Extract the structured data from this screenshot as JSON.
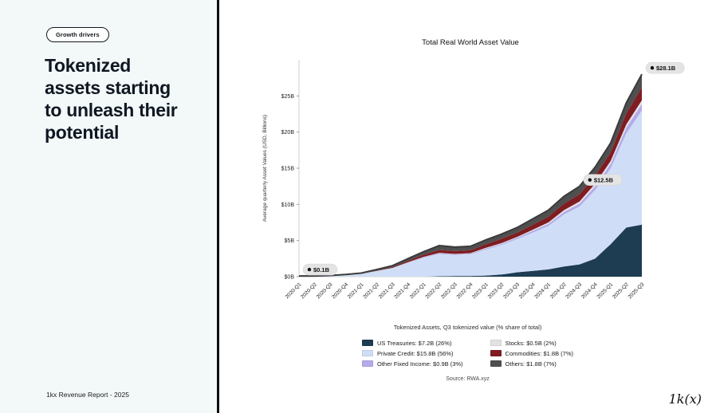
{
  "left_panel": {
    "badge": "Growth drivers",
    "title": "Tokenized\nassets starting\nto unleash their\npotential",
    "footer": "1kx Revenue Report  - 2025"
  },
  "logo": "1k(x)",
  "chart_data": {
    "type": "area",
    "stacked": true,
    "grid": false,
    "title": "Total Real World Asset Value",
    "ylabel": "Average quarterly Asset Values (USD, Billions)",
    "xlabel": "",
    "ylim": [
      0,
      30
    ],
    "ytick_values": [
      0,
      5,
      10,
      15,
      20,
      25
    ],
    "ytick_labels": [
      "$0B",
      "$5B",
      "$10B",
      "$15B",
      "$20B",
      "$25B"
    ],
    "categories": [
      "2020-Q1",
      "2020-Q2",
      "2020-Q3",
      "2020-Q4",
      "2021-Q1",
      "2021-Q2",
      "2021-Q3",
      "2021-Q4",
      "2022-Q1",
      "2022-Q2",
      "2022-Q3",
      "2022-Q4",
      "2023-Q1",
      "2023-Q2",
      "2023-Q3",
      "2023-Q4",
      "2024-Q1",
      "2024-Q2",
      "2024-Q3",
      "2024-Q4",
      "2025-Q1",
      "2025-Q2",
      "2025-Q3"
    ],
    "series": [
      {
        "name": "US Treasuries",
        "legend_label": "US Treasuries: $7.2B (26%)",
        "color": "#1e3c52",
        "values": [
          0,
          0,
          0,
          0,
          0,
          0,
          0,
          0,
          0,
          0.05,
          0.1,
          0.1,
          0.15,
          0.3,
          0.6,
          0.8,
          1.0,
          1.4,
          1.7,
          2.5,
          4.5,
          6.8,
          7.2
        ]
      },
      {
        "name": "Private Credit",
        "legend_label": "Private Credit: $15.8B (56%)",
        "color": "#cfdef6",
        "values": [
          0.1,
          0.1,
          0.15,
          0.25,
          0.4,
          0.8,
          1.2,
          1.9,
          2.6,
          3.1,
          2.9,
          3.0,
          3.6,
          4.1,
          4.6,
          5.3,
          6.0,
          7.2,
          8.0,
          9.5,
          10.5,
          13.0,
          15.8
        ]
      },
      {
        "name": "Other Fixed Income",
        "legend_label": "Other Fixed Income: $0.9B (3%)",
        "color": "#b4acea",
        "values": [
          0,
          0,
          0,
          0,
          0,
          0,
          0,
          0.05,
          0.1,
          0.1,
          0.1,
          0.1,
          0.15,
          0.15,
          0.2,
          0.25,
          0.3,
          0.35,
          0.4,
          0.5,
          0.6,
          0.8,
          0.9
        ]
      },
      {
        "name": "Stocks",
        "legend_label": "Stocks: $0.5B (2%)",
        "color": "#e2e2e2",
        "values": [
          0,
          0,
          0,
          0,
          0,
          0,
          0.02,
          0.05,
          0.05,
          0.05,
          0.05,
          0.05,
          0.1,
          0.1,
          0.1,
          0.15,
          0.2,
          0.25,
          0.3,
          0.35,
          0.4,
          0.45,
          0.5
        ]
      },
      {
        "name": "Commodities",
        "legend_label": "Commodities: $1.8B (7%)",
        "color": "#7f1d22",
        "values": [
          0,
          0,
          0,
          0,
          0,
          0.05,
          0.1,
          0.2,
          0.3,
          0.4,
          0.4,
          0.4,
          0.5,
          0.6,
          0.6,
          0.7,
          0.8,
          0.9,
          1.0,
          1.1,
          1.2,
          1.5,
          1.8
        ]
      },
      {
        "name": "Others",
        "legend_label": "Others: $1.8B (7%)",
        "color": "#4f4f4f",
        "values": [
          0,
          0,
          0.02,
          0.05,
          0.1,
          0.15,
          0.2,
          0.3,
          0.4,
          0.6,
          0.55,
          0.55,
          0.6,
          0.65,
          0.7,
          0.8,
          0.9,
          1.0,
          1.1,
          1.2,
          1.3,
          1.5,
          1.8
        ]
      }
    ],
    "annotations": [
      {
        "quarter": "2020-Q1",
        "label": "$0.1B"
      },
      {
        "quarter": "2024-Q3",
        "label": "$12.5B"
      },
      {
        "quarter": "2025-Q3",
        "label": "$28.1B"
      }
    ],
    "legend_title": "Tokenized Assets, Q3 tokenized value (% share of total)",
    "legend_position": "bottom",
    "source": "Source: RWA.xyz"
  }
}
